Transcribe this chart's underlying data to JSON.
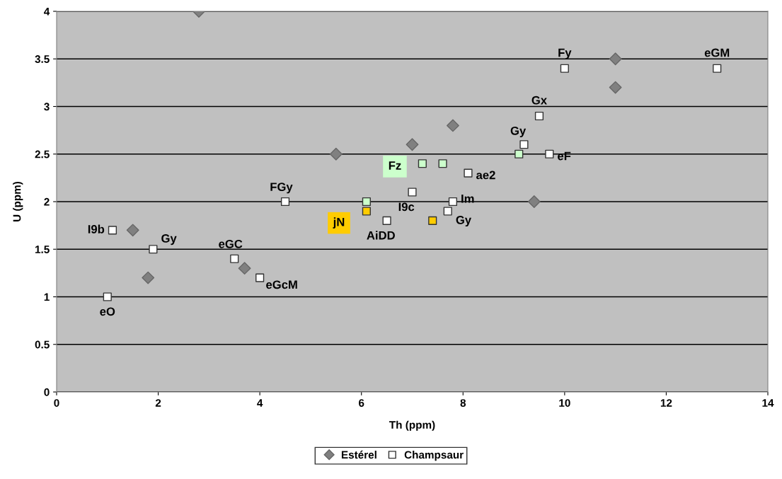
{
  "chart_data": {
    "type": "scatter",
    "xlabel": "Th (ppm)",
    "ylabel": "U (ppm)",
    "xlim": [
      0,
      14
    ],
    "xticks": [
      0,
      2,
      4,
      6,
      8,
      10,
      12,
      14
    ],
    "ylim": [
      0,
      4
    ],
    "yticks": [
      0,
      0.5,
      1,
      1.5,
      2,
      2.5,
      3,
      3.5,
      4
    ],
    "grid": "y",
    "legend": "bottom",
    "series": [
      {
        "name": "Estérel",
        "marker": "diamond",
        "color": "#808080",
        "x": [
          2.8,
          11.0,
          11.0,
          7.8,
          7.0,
          5.5,
          9.4,
          1.5,
          1.8,
          3.7
        ],
        "values": [
          4.0,
          3.5,
          3.2,
          2.8,
          2.6,
          2.5,
          2.0,
          1.7,
          1.2,
          1.3
        ]
      },
      {
        "name": "Champsaur",
        "marker": "square",
        "color": "#ffffff",
        "x": [
          1.0,
          1.1,
          1.9,
          3.5,
          4.0,
          4.5,
          6.5,
          7.0,
          7.7,
          7.8,
          8.1,
          9.2,
          9.5,
          9.7,
          10.0,
          13.0,
          6.1,
          7.2,
          9.1,
          7.6,
          6.1,
          7.4
        ],
        "values": [
          1.0,
          1.7,
          1.5,
          1.4,
          1.2,
          2.0,
          1.8,
          2.1,
          1.9,
          2.0,
          2.3,
          2.6,
          2.9,
          2.5,
          3.4,
          3.4,
          2.0,
          2.4,
          2.5,
          2.4,
          1.9,
          1.8
        ],
        "colors": [
          "#ffffff",
          "#ffffff",
          "#ffffff",
          "#ffffff",
          "#ffffff",
          "#ffffff",
          "#ffffff",
          "#ffffff",
          "#ffffff",
          "#ffffff",
          "#ffffff",
          "#ffffff",
          "#ffffff",
          "#ffffff",
          "#ffffff",
          "#ffffff",
          "#ccffcc",
          "#ccffcc",
          "#ccffcc",
          "#ccffcc",
          "#ffcc00",
          "#ffcc00"
        ]
      }
    ],
    "annotations": [
      {
        "text": "eO",
        "x": 1.0,
        "y": 1.0
      },
      {
        "text": "I9b",
        "x": 1.1,
        "y": 1.7
      },
      {
        "text": "Gy",
        "x": 1.9,
        "y": 1.5
      },
      {
        "text": "eGC",
        "x": 3.5,
        "y": 1.4
      },
      {
        "text": "eGcM",
        "x": 4.0,
        "y": 1.2
      },
      {
        "text": "FGy",
        "x": 4.5,
        "y": 2.0
      },
      {
        "text": "AiDD",
        "x": 6.5,
        "y": 1.8
      },
      {
        "text": "I9c",
        "x": 7.0,
        "y": 2.1
      },
      {
        "text": "Gy",
        "x": 7.7,
        "y": 1.9
      },
      {
        "text": "Im",
        "x": 7.8,
        "y": 2.0
      },
      {
        "text": "ae2",
        "x": 8.1,
        "y": 2.3
      },
      {
        "text": "Gy",
        "x": 9.2,
        "y": 2.6
      },
      {
        "text": "Gx",
        "x": 9.5,
        "y": 2.9
      },
      {
        "text": "eF",
        "x": 9.7,
        "y": 2.5
      },
      {
        "text": "Fy",
        "x": 10.0,
        "y": 3.4
      },
      {
        "text": "eGM",
        "x": 13.0,
        "y": 3.4
      },
      {
        "text": "Fz",
        "x": 7.2,
        "y": 2.4
      },
      {
        "text": "jN",
        "x": 6.1,
        "y": 1.9
      }
    ]
  }
}
